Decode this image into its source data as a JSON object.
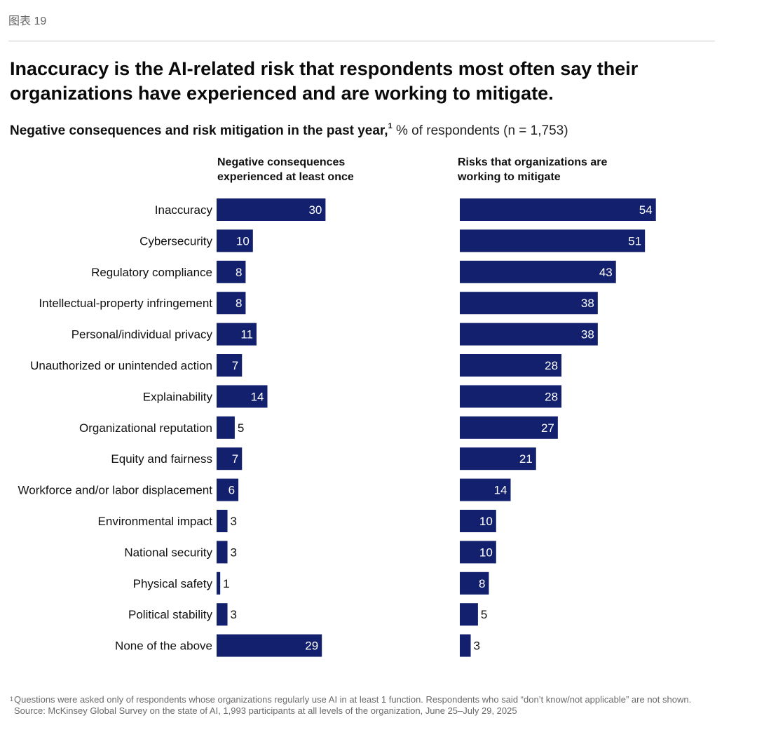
{
  "header": {
    "figure_label": "图表 19",
    "title": "Inaccuracy is the AI-related risk that respondents most often say their organizations have experienced and are working to mitigate.",
    "subtitle_bold": "Negative consequences and risk mitigation in the past year,",
    "subtitle_sup": "1",
    "subtitle_normal": " % of respondents (n = 1,753)"
  },
  "panels": {
    "left_header": "Negative consequences experienced at least once",
    "right_header": "Risks that organizations are working to mitigate"
  },
  "chart_data": {
    "type": "bar",
    "orientation": "horizontal",
    "categories": [
      "Inaccuracy",
      "Cybersecurity",
      "Regulatory compliance",
      "Intellectual-property infringement",
      "Personal/individual privacy",
      "Unauthorized or unintended action",
      "Explainability",
      "Organizational reputation",
      "Equity and fairness",
      "Workforce and/or labor displacement",
      "Environmental impact",
      "National security",
      "Physical safety",
      "Political stability",
      "None of the above"
    ],
    "series": [
      {
        "name": "Negative consequences experienced at least once",
        "values": [
          30,
          10,
          8,
          8,
          11,
          7,
          14,
          5,
          7,
          6,
          3,
          3,
          1,
          3,
          29
        ]
      },
      {
        "name": "Risks that organizations are working to mitigate",
        "values": [
          54,
          51,
          43,
          38,
          38,
          28,
          28,
          27,
          21,
          14,
          10,
          10,
          8,
          5,
          3
        ]
      }
    ],
    "bar_color": "#12206e",
    "label_inside_color": "#ffffff",
    "label_outside_color": "#111111",
    "unit": "% of respondents",
    "grid": false,
    "legend": "none"
  },
  "footnotes": {
    "note_mark": "1",
    "note_text": "Questions were asked only of respondents whose organizations regularly use AI in at least 1 function. Respondents who said “don’t know/not applicable” are not shown.",
    "source": "Source: McKinsey Global Survey on the state of AI, 1,993 participants at all levels of the organization, June 25–July 29, 2025"
  }
}
